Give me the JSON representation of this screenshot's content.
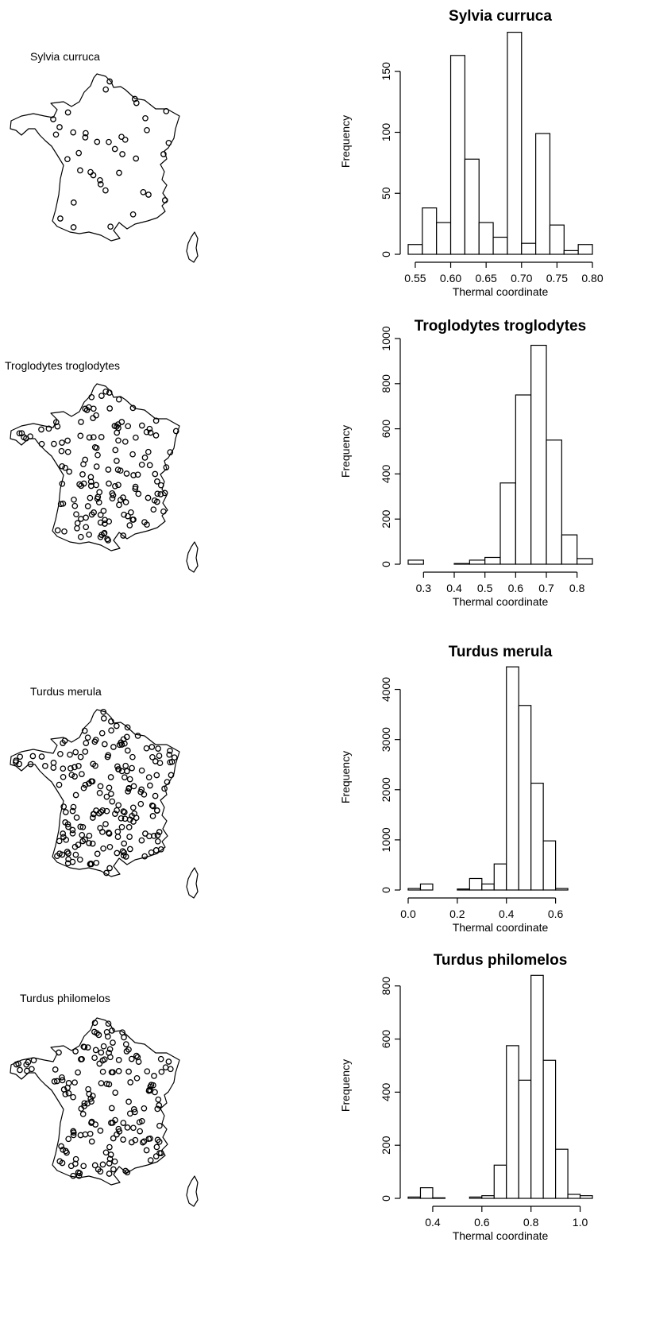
{
  "panels": [
    {
      "species": "Sylvia curruca",
      "map_label": "Sylvia curruca",
      "site_count": 40,
      "seed": 11
    },
    {
      "species": "Troglodytes troglodytes",
      "map_label": "Troglodytes troglodytes",
      "site_count": 150,
      "seed": 23
    },
    {
      "species": "Turdus merula",
      "map_label": "Turdus merula",
      "site_count": 200,
      "seed": 37
    },
    {
      "species": "Turdus philomelos",
      "map_label": "Turdus philomelos",
      "site_count": 170,
      "seed": 53
    }
  ],
  "chart_data": [
    {
      "type": "bar",
      "title": "Sylvia curruca",
      "xlabel": "Thermal coordinate",
      "ylabel": "Frequency",
      "bin_edges": [
        0.54,
        0.56,
        0.58,
        0.6,
        0.62,
        0.64,
        0.66,
        0.68,
        0.7,
        0.72,
        0.74,
        0.76,
        0.78,
        0.8
      ],
      "values": [
        8,
        38,
        26,
        163,
        78,
        26,
        14,
        182,
        9,
        99,
        24,
        3,
        8
      ],
      "xlim": [
        0.54,
        0.8
      ],
      "ylim": [
        0,
        185
      ],
      "xticks": [
        0.55,
        0.6,
        0.65,
        0.7,
        0.75,
        0.8
      ],
      "xtick_labels": [
        "0.55",
        "0.60",
        "0.65",
        "0.70",
        "0.75",
        "0.80"
      ],
      "yticks": [
        0,
        50,
        100,
        150
      ],
      "ytick_labels": [
        "0",
        "50",
        "100",
        "150"
      ]
    },
    {
      "type": "bar",
      "title": "Troglodytes troglodytes",
      "xlabel": "Thermal coordinate",
      "ylabel": "Frequency",
      "bin_edges": [
        0.25,
        0.3,
        0.35,
        0.4,
        0.45,
        0.5,
        0.55,
        0.6,
        0.65,
        0.7,
        0.75,
        0.8,
        0.85
      ],
      "values": [
        18,
        0,
        0,
        3,
        18,
        30,
        360,
        750,
        970,
        550,
        130,
        25
      ],
      "xlim": [
        0.25,
        0.85
      ],
      "ylim": [
        0,
        1000
      ],
      "xticks": [
        0.3,
        0.4,
        0.5,
        0.6,
        0.7,
        0.8
      ],
      "xtick_labels": [
        "0.3",
        "0.4",
        "0.5",
        "0.6",
        "0.7",
        "0.8"
      ],
      "yticks": [
        0,
        200,
        400,
        600,
        800,
        1000
      ],
      "ytick_labels": [
        "0",
        "200",
        "400",
        "600",
        "800",
        "1000"
      ]
    },
    {
      "type": "bar",
      "title": "Turdus merula",
      "xlabel": "Thermal coordinate",
      "ylabel": "Frequency",
      "bin_edges": [
        0.0,
        0.05,
        0.1,
        0.15,
        0.2,
        0.25,
        0.3,
        0.35,
        0.4,
        0.45,
        0.5,
        0.55,
        0.6,
        0.65,
        0.7,
        0.75
      ],
      "values": [
        30,
        120,
        0,
        0,
        20,
        230,
        120,
        520,
        4450,
        3680,
        2130,
        980,
        30,
        0,
        0
      ],
      "xlim": [
        0.0,
        0.75
      ],
      "ylim": [
        0,
        4500
      ],
      "xticks": [
        0.0,
        0.2,
        0.4,
        0.6
      ],
      "xtick_labels": [
        "0.0",
        "0.2",
        "0.4",
        "0.6"
      ],
      "yticks": [
        0,
        1000,
        2000,
        3000,
        4000
      ],
      "ytick_labels": [
        "0",
        "1000",
        "2000",
        "3000",
        "4000"
      ]
    },
    {
      "type": "bar",
      "title": "Turdus philomelos",
      "xlabel": "Thermal coordinate",
      "ylabel": "Frequency",
      "bin_edges": [
        0.3,
        0.35,
        0.4,
        0.45,
        0.5,
        0.55,
        0.6,
        0.65,
        0.7,
        0.75,
        0.8,
        0.85,
        0.9,
        0.95,
        1.0,
        1.05
      ],
      "values": [
        5,
        40,
        2,
        0,
        0,
        5,
        10,
        125,
        575,
        445,
        840,
        520,
        185,
        15,
        10
      ],
      "xlim": [
        0.3,
        1.05
      ],
      "ylim": [
        0,
        850
      ],
      "xticks": [
        0.4,
        0.6,
        0.8,
        1.0
      ],
      "xtick_labels": [
        "0.4",
        "0.6",
        "0.8",
        "1.0"
      ],
      "yticks": [
        0,
        200,
        400,
        600,
        800
      ],
      "ytick_labels": [
        "0",
        "200",
        "400",
        "600",
        "800"
      ]
    }
  ]
}
